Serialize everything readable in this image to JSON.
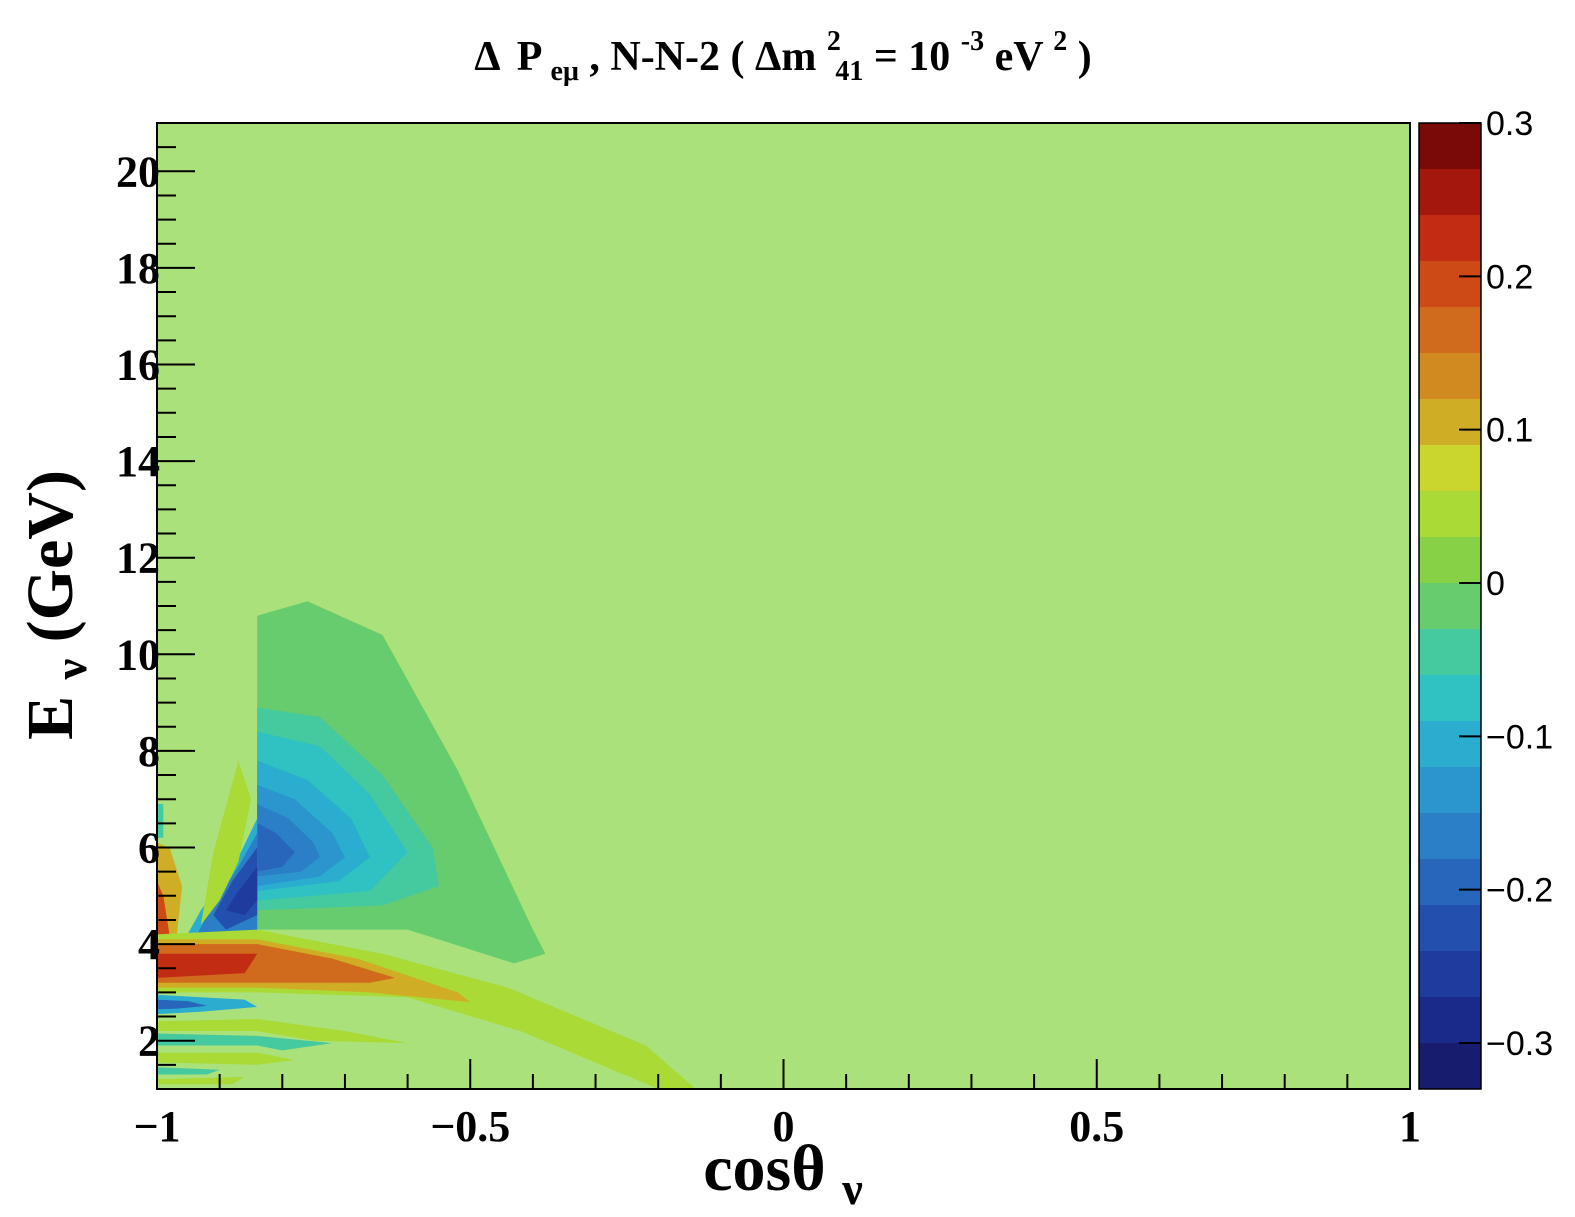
{
  "chart_data": {
    "type": "heatmap",
    "title": {
      "delta": "Δ",
      "p": "P",
      "p_sub": "eμ",
      "mid": " , N-N-2 (",
      "dm": "Δm",
      "dm_sup": "2",
      "dm_sub": "41",
      "eq": " = 10",
      "exp": "-3",
      "unit": " eV",
      "unit_sup": "2",
      "close": ")"
    },
    "xlabel": {
      "main": "cosθ",
      "sub": "ν"
    },
    "ylabel": {
      "main": "E",
      "sub": "ν",
      "rest": " (GeV)"
    },
    "xlim": [
      -1,
      1
    ],
    "ylim": [
      1,
      21
    ],
    "x_ticks": [
      {
        "value": -1,
        "label": "−1"
      },
      {
        "value": -0.5,
        "label": "−0.5"
      },
      {
        "value": 0,
        "label": "0"
      },
      {
        "value": 0.5,
        "label": "0.5"
      },
      {
        "value": 1,
        "label": "1"
      }
    ],
    "y_ticks": [
      {
        "value": 2,
        "label": "2"
      },
      {
        "value": 4,
        "label": "4"
      },
      {
        "value": 6,
        "label": "6"
      },
      {
        "value": 8,
        "label": "8"
      },
      {
        "value": 10,
        "label": "10"
      },
      {
        "value": 12,
        "label": "12"
      },
      {
        "value": 14,
        "label": "14"
      },
      {
        "value": 16,
        "label": "16"
      },
      {
        "value": 18,
        "label": "18"
      },
      {
        "value": 20,
        "label": "20"
      }
    ],
    "background_value": 0,
    "regions": [
      {
        "name": "negative-lobe-outer",
        "value": -0.03,
        "points": [
          [
            -0.84,
            10.8
          ],
          [
            -0.76,
            11.1
          ],
          [
            -0.64,
            10.4
          ],
          [
            -0.52,
            7.6
          ],
          [
            -0.4,
            4.3
          ],
          [
            -0.38,
            3.8
          ],
          [
            -0.43,
            3.6
          ],
          [
            -0.6,
            4.3
          ],
          [
            -0.84,
            4.3
          ]
        ]
      },
      {
        "name": "negative-lobe-2",
        "value": -0.06,
        "points": [
          [
            -0.84,
            8.9
          ],
          [
            -0.74,
            8.7
          ],
          [
            -0.64,
            7.5
          ],
          [
            -0.56,
            6.0
          ],
          [
            -0.55,
            5.2
          ],
          [
            -0.64,
            4.8
          ],
          [
            -0.84,
            4.7
          ]
        ]
      },
      {
        "name": "negative-lobe-3",
        "value": -0.09,
        "points": [
          [
            -0.84,
            8.4
          ],
          [
            -0.74,
            8.1
          ],
          [
            -0.66,
            7.1
          ],
          [
            -0.6,
            5.9
          ],
          [
            -0.66,
            5.1
          ],
          [
            -0.84,
            4.9
          ]
        ]
      },
      {
        "name": "negative-lobe-4",
        "value": -0.12,
        "points": [
          [
            -0.84,
            7.8
          ],
          [
            -0.76,
            7.4
          ],
          [
            -0.69,
            6.6
          ],
          [
            -0.66,
            5.8
          ],
          [
            -0.71,
            5.3
          ],
          [
            -0.84,
            5.1
          ]
        ]
      },
      {
        "name": "negative-lobe-5",
        "value": -0.15,
        "points": [
          [
            -0.84,
            7.3
          ],
          [
            -0.78,
            7.0
          ],
          [
            -0.72,
            6.3
          ],
          [
            -0.7,
            5.8
          ],
          [
            -0.74,
            5.4
          ],
          [
            -0.84,
            5.2
          ]
        ]
      },
      {
        "name": "negative-lobe-6",
        "value": -0.18,
        "points": [
          [
            -0.84,
            6.9
          ],
          [
            -0.79,
            6.6
          ],
          [
            -0.75,
            6.1
          ],
          [
            -0.74,
            5.8
          ],
          [
            -0.77,
            5.5
          ],
          [
            -0.84,
            5.4
          ]
        ]
      },
      {
        "name": "negative-lobe-7",
        "value": -0.21,
        "points": [
          [
            -0.84,
            6.5
          ],
          [
            -0.81,
            6.3
          ],
          [
            -0.78,
            5.9
          ],
          [
            -0.8,
            5.6
          ],
          [
            -0.84,
            5.5
          ]
        ]
      },
      {
        "name": "left-negative-outer",
        "value": -0.1,
        "points": [
          [
            -0.84,
            6.6
          ],
          [
            -0.87,
            5.8
          ],
          [
            -0.93,
            4.7
          ],
          [
            -0.96,
            4.0
          ],
          [
            -0.93,
            3.8
          ],
          [
            -0.84,
            3.9
          ]
        ]
      },
      {
        "name": "left-negative-mid",
        "value": -0.17,
        "points": [
          [
            -0.84,
            6.3
          ],
          [
            -0.87,
            5.6
          ],
          [
            -0.92,
            4.6
          ],
          [
            -0.94,
            4.1
          ],
          [
            -0.91,
            4.0
          ],
          [
            -0.84,
            4.2
          ]
        ]
      },
      {
        "name": "left-negative-inner",
        "value": -0.23,
        "points": [
          [
            -0.84,
            6.0
          ],
          [
            -0.88,
            5.3
          ],
          [
            -0.91,
            4.6
          ],
          [
            -0.89,
            4.3
          ],
          [
            -0.84,
            4.6
          ]
        ]
      },
      {
        "name": "left-negative-core",
        "value": -0.27,
        "points": [
          [
            -0.84,
            5.6
          ],
          [
            -0.87,
            5.1
          ],
          [
            -0.89,
            4.7
          ],
          [
            -0.86,
            4.6
          ],
          [
            -0.84,
            4.9
          ]
        ]
      },
      {
        "name": "upper-left-positive",
        "value": 0.04,
        "points": [
          [
            -0.91,
            5.9
          ],
          [
            -0.87,
            7.8
          ],
          [
            -0.85,
            7.0
          ],
          [
            -0.87,
            5.7
          ],
          [
            -0.9,
            4.9
          ],
          [
            -0.93,
            4.4
          ]
        ]
      },
      {
        "name": "left-edge-positive",
        "value": 0.1,
        "points": [
          [
            -1,
            6.1
          ],
          [
            -0.98,
            6.0
          ],
          [
            -0.96,
            5.2
          ],
          [
            -0.97,
            4.0
          ],
          [
            -1,
            3.8
          ]
        ]
      },
      {
        "name": "left-edge-positive-inner",
        "value": 0.18,
        "points": [
          [
            -1,
            5.3
          ],
          [
            -0.99,
            5.0
          ],
          [
            -0.98,
            4.2
          ],
          [
            -1,
            4.1
          ]
        ]
      },
      {
        "name": "left-edge-negative-strip",
        "value": -0.05,
        "points": [
          [
            -1,
            6.9
          ],
          [
            -0.99,
            6.9
          ],
          [
            -0.99,
            6.2
          ],
          [
            -1,
            6.2
          ]
        ]
      },
      {
        "name": "positive-band-outer",
        "value": 0.05,
        "points": [
          [
            -1,
            4.2
          ],
          [
            -0.84,
            4.3
          ],
          [
            -0.64,
            3.8
          ],
          [
            -0.44,
            3.1
          ],
          [
            -0.22,
            1.9
          ],
          [
            -0.14,
            1.0
          ],
          [
            -0.2,
            1.0
          ],
          [
            -0.42,
            2.2
          ],
          [
            -0.6,
            2.9
          ],
          [
            -0.84,
            3.0
          ],
          [
            -1,
            3.0
          ]
        ]
      },
      {
        "name": "positive-band-2",
        "value": 0.1,
        "points": [
          [
            -1,
            4.1
          ],
          [
            -0.84,
            4.1
          ],
          [
            -0.68,
            3.7
          ],
          [
            -0.52,
            3.0
          ],
          [
            -0.5,
            2.8
          ],
          [
            -0.66,
            3.0
          ],
          [
            -0.84,
            3.1
          ],
          [
            -1,
            3.1
          ]
        ]
      },
      {
        "name": "positive-band-3",
        "value": 0.15,
        "points": [
          [
            -1,
            4.0
          ],
          [
            -0.84,
            4.0
          ],
          [
            -0.72,
            3.7
          ],
          [
            -0.62,
            3.3
          ],
          [
            -0.66,
            3.2
          ],
          [
            -0.84,
            3.2
          ],
          [
            -1,
            3.2
          ]
        ]
      },
      {
        "name": "positive-band-core",
        "value": 0.22,
        "points": [
          [
            -1,
            3.8
          ],
          [
            -0.84,
            3.8
          ],
          [
            -0.86,
            3.4
          ],
          [
            -1,
            3.3
          ]
        ]
      },
      {
        "name": "lower-negative-band",
        "value": -0.12,
        "points": [
          [
            -1,
            2.95
          ],
          [
            -0.93,
            2.9
          ],
          [
            -0.86,
            2.85
          ],
          [
            -0.84,
            2.7
          ],
          [
            -0.93,
            2.6
          ],
          [
            -1,
            2.55
          ]
        ]
      },
      {
        "name": "lower-negative-band-inner",
        "value": -0.2,
        "points": [
          [
            -1,
            2.85
          ],
          [
            -0.95,
            2.82
          ],
          [
            -0.92,
            2.72
          ],
          [
            -0.97,
            2.66
          ],
          [
            -1,
            2.65
          ]
        ]
      },
      {
        "name": "lower-positive-stripe-1",
        "value": 0.05,
        "points": [
          [
            -1,
            2.4
          ],
          [
            -0.84,
            2.45
          ],
          [
            -0.7,
            2.2
          ],
          [
            -0.6,
            1.95
          ],
          [
            -0.75,
            2.0
          ],
          [
            -0.84,
            2.2
          ],
          [
            -1,
            2.2
          ]
        ]
      },
      {
        "name": "lower-negative-stripe-1",
        "value": -0.05,
        "points": [
          [
            -1,
            2.15
          ],
          [
            -0.84,
            2.1
          ],
          [
            -0.72,
            1.95
          ],
          [
            -0.8,
            1.8
          ],
          [
            -0.84,
            1.9
          ],
          [
            -1,
            1.9
          ]
        ]
      },
      {
        "name": "lower-positive-stripe-2",
        "value": 0.04,
        "points": [
          [
            -1,
            1.75
          ],
          [
            -0.84,
            1.75
          ],
          [
            -0.78,
            1.6
          ],
          [
            -0.84,
            1.5
          ],
          [
            -1,
            1.55
          ]
        ]
      },
      {
        "name": "lower-negative-stripe-2",
        "value": -0.04,
        "points": [
          [
            -1,
            1.45
          ],
          [
            -0.9,
            1.4
          ],
          [
            -0.92,
            1.3
          ],
          [
            -1,
            1.3
          ]
        ]
      },
      {
        "name": "lower-positive-stripe-3",
        "value": 0.04,
        "points": [
          [
            -1,
            1.2
          ],
          [
            -0.86,
            1.25
          ],
          [
            -0.88,
            1.1
          ],
          [
            -1,
            1.1
          ]
        ]
      }
    ],
    "colorbar": {
      "range": [
        -0.33,
        0.3
      ],
      "levels": [
        -0.33,
        -0.3,
        -0.27,
        -0.24,
        -0.21,
        -0.18,
        -0.15,
        -0.12,
        -0.09,
        -0.06,
        -0.03,
        0,
        0.03,
        0.06,
        0.09,
        0.12,
        0.15,
        0.18,
        0.21,
        0.24,
        0.27,
        0.3
      ],
      "colors": [
        "#171c6e",
        "#1a2a8a",
        "#1e3c9e",
        "#2350ae",
        "#2766bb",
        "#2a7fc6",
        "#2b96ce",
        "#2badd0",
        "#30c2c2",
        "#45c99e",
        "#66cc6e",
        "#86d145",
        "#a9da35",
        "#cad62d",
        "#cfae26",
        "#d08a20",
        "#d06a1c",
        "#cd4a17",
        "#c12c12",
        "#a3170d",
        "#7a0a08"
      ],
      "tick_values": [
        -0.3,
        -0.2,
        -0.1,
        0,
        0.1,
        0.2,
        0.3
      ],
      "tick_labels": [
        "−0.3",
        "−0.2",
        "−0.1",
        "0",
        "0.1",
        "0.2",
        "0.3"
      ]
    },
    "background_color": "#abe17a",
    "grid": false,
    "legend": "none"
  }
}
